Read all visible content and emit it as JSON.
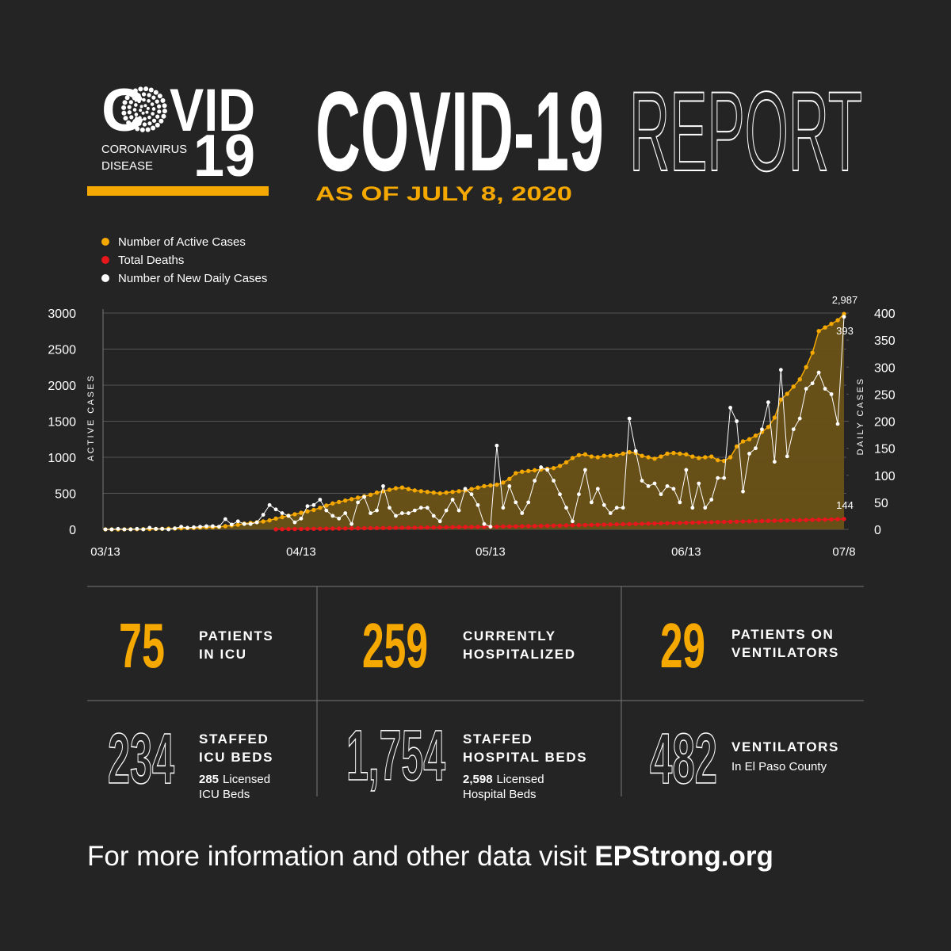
{
  "logo": {
    "left": "C",
    "right": "VID",
    "line1": "CORONAVIRUS",
    "line2": "DISEASE",
    "number": "19"
  },
  "header": {
    "title_bold": "COVID-19",
    "title_outline": "REPORT",
    "subtitle": "AS OF JULY 8, 2020"
  },
  "chart_data": {
    "type": "line",
    "categories": [
      "03/13",
      null,
      null,
      null,
      null,
      null,
      null,
      null,
      null,
      null,
      null,
      null,
      null,
      null,
      null,
      null,
      null,
      null,
      null,
      null,
      null,
      null,
      null,
      null,
      null,
      null,
      null,
      null,
      null,
      null,
      null,
      "04/13",
      null,
      null,
      null,
      null,
      null,
      null,
      null,
      null,
      null,
      null,
      null,
      null,
      null,
      null,
      null,
      null,
      null,
      null,
      null,
      null,
      null,
      null,
      null,
      null,
      null,
      null,
      null,
      null,
      null,
      "05/13",
      null,
      null,
      null,
      null,
      null,
      null,
      null,
      null,
      null,
      null,
      null,
      null,
      null,
      null,
      null,
      null,
      null,
      null,
      null,
      null,
      null,
      null,
      null,
      null,
      null,
      null,
      null,
      null,
      null,
      null,
      "06/13",
      null,
      null,
      null,
      null,
      null,
      null,
      null,
      null,
      null,
      null,
      null,
      null,
      null,
      null,
      null,
      null,
      null,
      null,
      null,
      null,
      null,
      null,
      null,
      null,
      "07/8"
    ],
    "series": [
      {
        "name": "Number of Active Cases",
        "color": "#f5a800",
        "area_color": "#6b5218",
        "axis": "y",
        "values": [
          0,
          0,
          1,
          1,
          2,
          3,
          3,
          5,
          6,
          8,
          10,
          12,
          15,
          18,
          20,
          25,
          28,
          30,
          35,
          45,
          55,
          65,
          80,
          90,
          100,
          110,
          125,
          150,
          170,
          190,
          210,
          230,
          250,
          270,
          300,
          330,
          360,
          380,
          400,
          420,
          440,
          460,
          480,
          510,
          530,
          550,
          570,
          580,
          560,
          540,
          530,
          520,
          510,
          500,
          510,
          520,
          530,
          540,
          560,
          580,
          600,
          610,
          620,
          650,
          700,
          780,
          800,
          810,
          820,
          830,
          840,
          850,
          880,
          930,
          990,
          1030,
          1040,
          1010,
          1000,
          1020,
          1020,
          1030,
          1050,
          1070,
          1060,
          1020,
          1000,
          980,
          1010,
          1050,
          1060,
          1050,
          1040,
          1010,
          990,
          1000,
          1010,
          960,
          950,
          1000,
          1150,
          1220,
          1250,
          1300,
          1350,
          1420,
          1550,
          1800,
          1880,
          1980,
          2080,
          2250,
          2450,
          2750,
          2800,
          2850,
          2900,
          2987
        ],
        "value_labels": [
          null,
          null,
          null,
          null,
          null,
          null,
          null,
          null,
          null,
          null,
          null,
          null,
          null,
          null,
          null,
          null,
          null,
          null,
          null,
          null,
          null,
          null,
          null,
          null,
          null,
          null,
          null,
          null,
          null,
          null,
          null,
          null,
          null,
          null,
          null,
          null,
          null,
          null,
          null,
          null,
          null,
          null,
          null,
          null,
          null,
          null,
          null,
          null,
          null,
          null,
          null,
          null,
          null,
          null,
          null,
          null,
          null,
          null,
          null,
          null,
          null,
          null,
          null,
          null,
          null,
          null,
          null,
          null,
          null,
          null,
          null,
          null,
          null,
          null,
          null,
          null,
          null,
          null,
          null,
          null,
          null,
          null,
          null,
          null,
          null,
          null,
          null,
          null,
          null,
          null,
          null,
          null,
          null,
          null,
          null,
          null,
          null,
          null,
          null,
          null,
          null,
          null,
          null,
          null,
          null,
          null,
          null,
          null,
          null,
          null,
          null,
          null,
          null,
          null,
          null,
          null,
          null,
          "2,987"
        ]
      },
      {
        "name": "Total Deaths",
        "color": "#e8171b",
        "axis": "y",
        "values": [
          null,
          null,
          null,
          null,
          null,
          null,
          null,
          null,
          null,
          null,
          null,
          null,
          null,
          null,
          null,
          null,
          null,
          null,
          null,
          null,
          null,
          null,
          null,
          null,
          null,
          null,
          null,
          2,
          3,
          4,
          5,
          6,
          7,
          8,
          9,
          10,
          11,
          12,
          13,
          14,
          15,
          16,
          17,
          18,
          19,
          20,
          21,
          22,
          23,
          24,
          25,
          26,
          27,
          28,
          30,
          31,
          32,
          33,
          34,
          35,
          36,
          37,
          38,
          40,
          41,
          42,
          43,
          45,
          46,
          48,
          50,
          52,
          53,
          55,
          57,
          59,
          60,
          62,
          64,
          66,
          68,
          70,
          72,
          74,
          76,
          78,
          80,
          82,
          84,
          86,
          88,
          90,
          92,
          94,
          96,
          98,
          100,
          102,
          104,
          106,
          108,
          110,
          112,
          114,
          116,
          118,
          120,
          122,
          124,
          126,
          128,
          130,
          132,
          134,
          136,
          138,
          141,
          144
        ]
      },
      {
        "name": "Number of New Daily Cases",
        "color": "#ffffff",
        "axis": "y2",
        "values": [
          0,
          0,
          1,
          0,
          0,
          1,
          0,
          3,
          1,
          1,
          0,
          2,
          5,
          3,
          4,
          5,
          6,
          6,
          5,
          19,
          9,
          15,
          10,
          10,
          13,
          27,
          45,
          37,
          30,
          25,
          13,
          20,
          43,
          45,
          55,
          35,
          25,
          20,
          30,
          10,
          50,
          60,
          30,
          35,
          80,
          40,
          25,
          30,
          30,
          35,
          40,
          40,
          25,
          15,
          35,
          55,
          35,
          75,
          65,
          45,
          10,
          5,
          155,
          40,
          80,
          50,
          30,
          50,
          90,
          115,
          110,
          90,
          65,
          40,
          15,
          65,
          110,
          50,
          75,
          45,
          30,
          40,
          40,
          205,
          145,
          90,
          80,
          85,
          65,
          80,
          75,
          50,
          110,
          40,
          85,
          40,
          55,
          95,
          95,
          225,
          200,
          70,
          140,
          150,
          185,
          235,
          125,
          295,
          135,
          185,
          205,
          260,
          270,
          290,
          260,
          250,
          195,
          393
        ]
      }
    ],
    "ylabel": "ACTIVE CASES",
    "y2label": "DAILY CASES",
    "ylim": [
      0,
      3000
    ],
    "yticks": [
      0,
      500,
      1000,
      1500,
      2000,
      2500,
      3000
    ],
    "y2lim": [
      0,
      400
    ],
    "y2ticks": [
      0,
      50,
      100,
      150,
      200,
      250,
      300,
      350,
      400
    ],
    "grid": true,
    "legend": "top-left"
  },
  "stats": [
    {
      "value": "75",
      "label": [
        "PATIENTS",
        "IN ICU"
      ]
    },
    {
      "value": "259",
      "label": [
        "CURRENTLY",
        "HOSPITALIZED"
      ]
    },
    {
      "value": "29",
      "label": [
        "PATIENTS ON",
        "VENTILATORS"
      ]
    },
    {
      "value": "234",
      "label": [
        "STAFFED",
        "ICU BEDS"
      ],
      "note": {
        "number": "285",
        "lines": [
          "Licensed",
          "ICU Beds"
        ]
      }
    },
    {
      "value": "1,754",
      "label": [
        "STAFFED",
        "HOSPITAL BEDS"
      ],
      "note": {
        "number": "2,598",
        "lines": [
          "Licensed",
          "Hospital Beds"
        ]
      }
    },
    {
      "value": "482",
      "label": [
        "VENTILATORS"
      ],
      "note": {
        "lines": [
          "In El Paso County"
        ]
      }
    }
  ],
  "footer": {
    "text": "For more information and other data visit",
    "link": "EPStrong.org"
  }
}
